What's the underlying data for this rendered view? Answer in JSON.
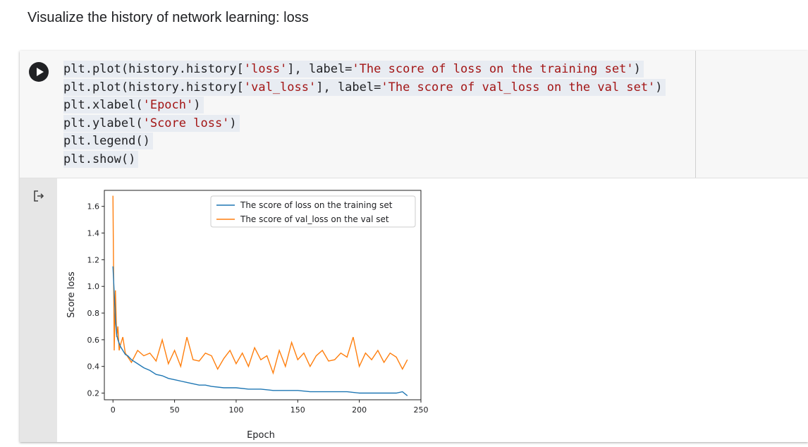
{
  "markdown": {
    "text": "Visualize the history of network learning: loss"
  },
  "code": {
    "lines": [
      {
        "pre": "plt.plot(history.history[",
        "s1": "'loss'",
        "mid": "], label=",
        "s2": "'The score of loss on the training set'",
        "post": ")"
      },
      {
        "pre": "plt.plot(history.history[",
        "s1": "'val_loss'",
        "mid": "], label=",
        "s2": "'The score of val_loss on the val set'",
        "post": ")"
      },
      {
        "pre": "plt.xlabel(",
        "s1": "'Epoch'",
        "mid": "",
        "s2": "",
        "post": ")"
      },
      {
        "pre": "plt.ylabel(",
        "s1": "'Score loss'",
        "mid": "",
        "s2": "",
        "post": ")"
      },
      {
        "pre": "plt.legend()",
        "s1": "",
        "mid": "",
        "s2": "",
        "post": ""
      },
      {
        "pre": "plt.show()",
        "s1": "",
        "mid": "",
        "s2": "",
        "post": ""
      }
    ]
  },
  "icons": {
    "run": "play-icon",
    "output": "output-arrow-icon"
  },
  "chart_data": {
    "type": "line",
    "xlabel": "Epoch",
    "ylabel": "Score loss",
    "xlim": [
      -7,
      250
    ],
    "ylim": [
      0.15,
      1.72
    ],
    "xticks": [
      "0",
      "50",
      "100",
      "150",
      "200",
      "250"
    ],
    "yticks": [
      "0.2",
      "0.4",
      "0.6",
      "0.8",
      "1.0",
      "1.2",
      "1.4",
      "1.6"
    ],
    "legend_position": "top-right",
    "series": [
      {
        "name": "The score of loss on the training set",
        "color": "#1f77b4",
        "x": [
          0,
          1,
          2,
          3,
          4,
          6,
          8,
          10,
          12,
          15,
          20,
          25,
          30,
          35,
          40,
          45,
          50,
          55,
          60,
          65,
          70,
          75,
          80,
          90,
          100,
          110,
          120,
          130,
          140,
          150,
          160,
          170,
          180,
          190,
          200,
          210,
          220,
          230,
          235,
          239
        ],
        "y": [
          1.15,
          0.95,
          0.75,
          0.64,
          0.6,
          0.55,
          0.52,
          0.49,
          0.48,
          0.45,
          0.42,
          0.39,
          0.37,
          0.34,
          0.33,
          0.31,
          0.3,
          0.29,
          0.28,
          0.27,
          0.26,
          0.26,
          0.25,
          0.24,
          0.24,
          0.23,
          0.23,
          0.22,
          0.22,
          0.22,
          0.21,
          0.21,
          0.21,
          0.21,
          0.2,
          0.2,
          0.2,
          0.2,
          0.21,
          0.18
        ]
      },
      {
        "name": "The score of val_loss on the val set",
        "color": "#ff7f0e",
        "x": [
          0,
          1,
          2,
          3,
          4,
          5,
          6,
          8,
          10,
          15,
          20,
          25,
          30,
          35,
          40,
          45,
          50,
          55,
          60,
          65,
          70,
          75,
          80,
          85,
          90,
          95,
          100,
          105,
          110,
          115,
          120,
          125,
          130,
          135,
          140,
          145,
          150,
          155,
          160,
          165,
          170,
          175,
          180,
          185,
          190,
          195,
          200,
          205,
          210,
          215,
          220,
          225,
          230,
          235,
          239
        ],
        "y": [
          1.68,
          0.52,
          0.97,
          0.62,
          0.7,
          0.52,
          0.56,
          0.62,
          0.5,
          0.43,
          0.52,
          0.48,
          0.5,
          0.44,
          0.6,
          0.42,
          0.52,
          0.4,
          0.62,
          0.45,
          0.44,
          0.5,
          0.48,
          0.38,
          0.46,
          0.52,
          0.42,
          0.5,
          0.4,
          0.54,
          0.45,
          0.48,
          0.35,
          0.52,
          0.4,
          0.58,
          0.45,
          0.5,
          0.4,
          0.48,
          0.52,
          0.44,
          0.45,
          0.5,
          0.47,
          0.62,
          0.4,
          0.5,
          0.45,
          0.52,
          0.43,
          0.5,
          0.47,
          0.38,
          0.45
        ]
      }
    ]
  }
}
